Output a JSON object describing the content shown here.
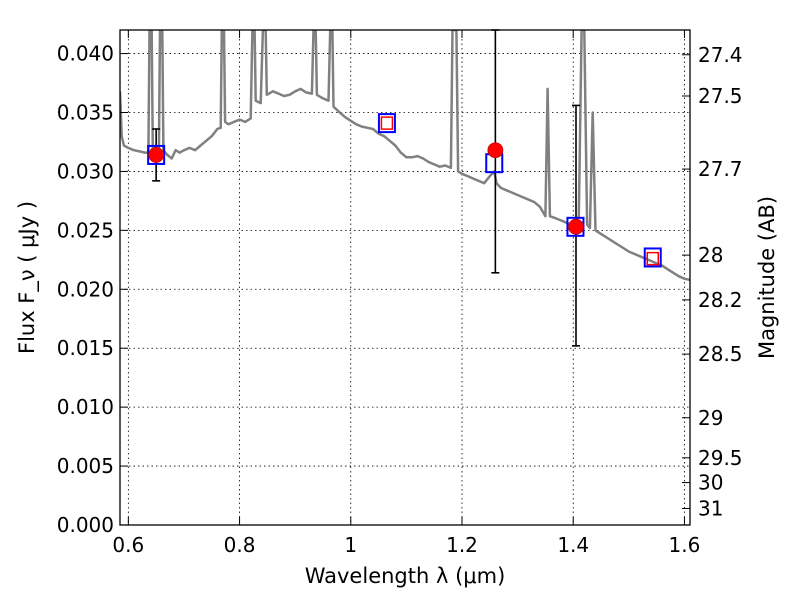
{
  "chart_data": {
    "type": "scatter",
    "xlabel": "Wavelength  λ (μm)",
    "ylabel": "Flux  F_ν  ( μJy )",
    "ylabel_right": "Magnitude (AB)",
    "xlim": [
      0.585,
      1.61
    ],
    "ylim": [
      0.0,
      0.042
    ],
    "grid": true,
    "x_ticks": [
      0.6,
      0.8,
      1.0,
      1.2,
      1.4,
      1.6
    ],
    "x_tick_labels": [
      "0.6",
      "0.8",
      "1",
      "1.2",
      "1.4",
      "1.6"
    ],
    "y_ticks": [
      0.0,
      0.005,
      0.01,
      0.015,
      0.02,
      0.025,
      0.03,
      0.035,
      0.04
    ],
    "y_tick_labels": [
      "0.000",
      "0.005",
      "0.010",
      "0.015",
      "0.020",
      "0.025",
      "0.030",
      "0.035",
      "0.040"
    ],
    "right_ticks": [
      {
        "label": "27.4",
        "flux": 0.0399
      },
      {
        "label": "27.5",
        "flux": 0.0364
      },
      {
        "label": "27.7",
        "flux": 0.0302
      },
      {
        "label": "28",
        "flux": 0.0229
      },
      {
        "label": "28.2",
        "flux": 0.0191
      },
      {
        "label": "28.5",
        "flux": 0.0145
      },
      {
        "label": "29",
        "flux": 0.0091
      },
      {
        "label": "29.5",
        "flux": 0.0057
      },
      {
        "label": "30",
        "flux": 0.0036
      },
      {
        "label": "31",
        "flux": 0.0014
      }
    ],
    "model_spectrum": {
      "color": "#808080",
      "points": [
        [
          0.585,
          0.0368
        ],
        [
          0.588,
          0.033
        ],
        [
          0.592,
          0.0322
        ],
        [
          0.6,
          0.032
        ],
        [
          0.61,
          0.0318
        ],
        [
          0.62,
          0.0317
        ],
        [
          0.63,
          0.0316
        ],
        [
          0.636,
          0.0316
        ],
        [
          0.638,
          0.042
        ],
        [
          0.642,
          0.042
        ],
        [
          0.644,
          0.0318
        ],
        [
          0.65,
          0.0316
        ],
        [
          0.655,
          0.0316
        ],
        [
          0.657,
          0.042
        ],
        [
          0.661,
          0.042
        ],
        [
          0.663,
          0.0318
        ],
        [
          0.67,
          0.0314
        ],
        [
          0.678,
          0.0311
        ],
        [
          0.685,
          0.0318
        ],
        [
          0.692,
          0.0316
        ],
        [
          0.7,
          0.0318
        ],
        [
          0.71,
          0.032
        ],
        [
          0.72,
          0.0318
        ],
        [
          0.73,
          0.0322
        ],
        [
          0.74,
          0.0326
        ],
        [
          0.75,
          0.033
        ],
        [
          0.76,
          0.0336
        ],
        [
          0.766,
          0.0337
        ],
        [
          0.768,
          0.042
        ],
        [
          0.772,
          0.042
        ],
        [
          0.774,
          0.0342
        ],
        [
          0.78,
          0.034
        ],
        [
          0.79,
          0.0342
        ],
        [
          0.8,
          0.0344
        ],
        [
          0.81,
          0.0342
        ],
        [
          0.82,
          0.0345
        ],
        [
          0.823,
          0.042
        ],
        [
          0.827,
          0.042
        ],
        [
          0.829,
          0.036
        ],
        [
          0.838,
          0.0358
        ],
        [
          0.842,
          0.042
        ],
        [
          0.847,
          0.042
        ],
        [
          0.849,
          0.0365
        ],
        [
          0.86,
          0.0368
        ],
        [
          0.87,
          0.0366
        ],
        [
          0.88,
          0.0364
        ],
        [
          0.89,
          0.0365
        ],
        [
          0.9,
          0.0368
        ],
        [
          0.91,
          0.037
        ],
        [
          0.92,
          0.0367
        ],
        [
          0.93,
          0.0366
        ],
        [
          0.933,
          0.042
        ],
        [
          0.937,
          0.042
        ],
        [
          0.939,
          0.0365
        ],
        [
          0.95,
          0.0362
        ],
        [
          0.96,
          0.036
        ],
        [
          0.963,
          0.042
        ],
        [
          0.967,
          0.042
        ],
        [
          0.969,
          0.0355
        ],
        [
          0.98,
          0.035
        ],
        [
          0.99,
          0.0346
        ],
        [
          1.0,
          0.0343
        ],
        [
          1.01,
          0.034
        ],
        [
          1.02,
          0.0338
        ],
        [
          1.03,
          0.0337
        ],
        [
          1.04,
          0.0336
        ],
        [
          1.05,
          0.0332
        ],
        [
          1.06,
          0.033
        ],
        [
          1.07,
          0.0326
        ],
        [
          1.08,
          0.0322
        ],
        [
          1.09,
          0.0316
        ],
        [
          1.1,
          0.0312
        ],
        [
          1.11,
          0.0312
        ],
        [
          1.12,
          0.0313
        ],
        [
          1.13,
          0.0311
        ],
        [
          1.14,
          0.0308
        ],
        [
          1.15,
          0.0306
        ],
        [
          1.16,
          0.0304
        ],
        [
          1.17,
          0.0305
        ],
        [
          1.18,
          0.0303
        ],
        [
          1.183,
          0.042
        ],
        [
          1.19,
          0.042
        ],
        [
          1.193,
          0.03
        ],
        [
          1.2,
          0.0298
        ],
        [
          1.21,
          0.0296
        ],
        [
          1.22,
          0.0294
        ],
        [
          1.23,
          0.0292
        ],
        [
          1.24,
          0.029
        ],
        [
          1.25,
          0.0296
        ],
        [
          1.258,
          0.03
        ],
        [
          1.262,
          0.029
        ],
        [
          1.27,
          0.0286
        ],
        [
          1.28,
          0.0284
        ],
        [
          1.29,
          0.0282
        ],
        [
          1.3,
          0.028
        ],
        [
          1.31,
          0.0278
        ],
        [
          1.32,
          0.0276
        ],
        [
          1.33,
          0.0274
        ],
        [
          1.34,
          0.027
        ],
        [
          1.35,
          0.0262
        ],
        [
          1.354,
          0.037
        ],
        [
          1.358,
          0.0262
        ],
        [
          1.37,
          0.026
        ],
        [
          1.38,
          0.0258
        ],
        [
          1.39,
          0.0256
        ],
        [
          1.4,
          0.0254
        ],
        [
          1.405,
          0.0252
        ],
        [
          1.41,
          0.0262
        ],
        [
          1.415,
          0.042
        ],
        [
          1.42,
          0.042
        ],
        [
          1.425,
          0.0255
        ],
        [
          1.43,
          0.0252
        ],
        [
          1.435,
          0.035
        ],
        [
          1.44,
          0.025
        ],
        [
          1.45,
          0.0247
        ],
        [
          1.46,
          0.0244
        ],
        [
          1.47,
          0.0241
        ],
        [
          1.48,
          0.0238
        ],
        [
          1.49,
          0.0235
        ],
        [
          1.5,
          0.0232
        ],
        [
          1.51,
          0.023
        ],
        [
          1.52,
          0.0228
        ],
        [
          1.53,
          0.0226
        ],
        [
          1.54,
          0.0224
        ],
        [
          1.55,
          0.0222
        ],
        [
          1.56,
          0.022
        ],
        [
          1.57,
          0.0217
        ],
        [
          1.58,
          0.0214
        ],
        [
          1.59,
          0.0211
        ],
        [
          1.6,
          0.0209
        ],
        [
          1.61,
          0.0208
        ]
      ]
    },
    "model_photometry": {
      "color": "#0000ff",
      "points": [
        [
          0.65,
          0.0314
        ],
        [
          1.065,
          0.0341
        ],
        [
          1.258,
          0.0307
        ],
        [
          1.404,
          0.0253
        ],
        [
          1.543,
          0.0227
        ]
      ]
    },
    "fit_photometry": {
      "color": "#ff0000",
      "points": [
        [
          1.065,
          0.0341
        ],
        [
          1.543,
          0.0226
        ]
      ]
    },
    "observations": {
      "color": "#ff0000",
      "points": [
        {
          "x": 0.65,
          "y": 0.0314,
          "ylow": 0.0292,
          "yhigh": 0.0336
        },
        {
          "x": 1.26,
          "y": 0.0318,
          "ylow": 0.0214,
          "yhigh": 0.042
        },
        {
          "x": 1.405,
          "y": 0.0253,
          "ylow": 0.0152,
          "yhigh": 0.0356
        }
      ]
    }
  }
}
